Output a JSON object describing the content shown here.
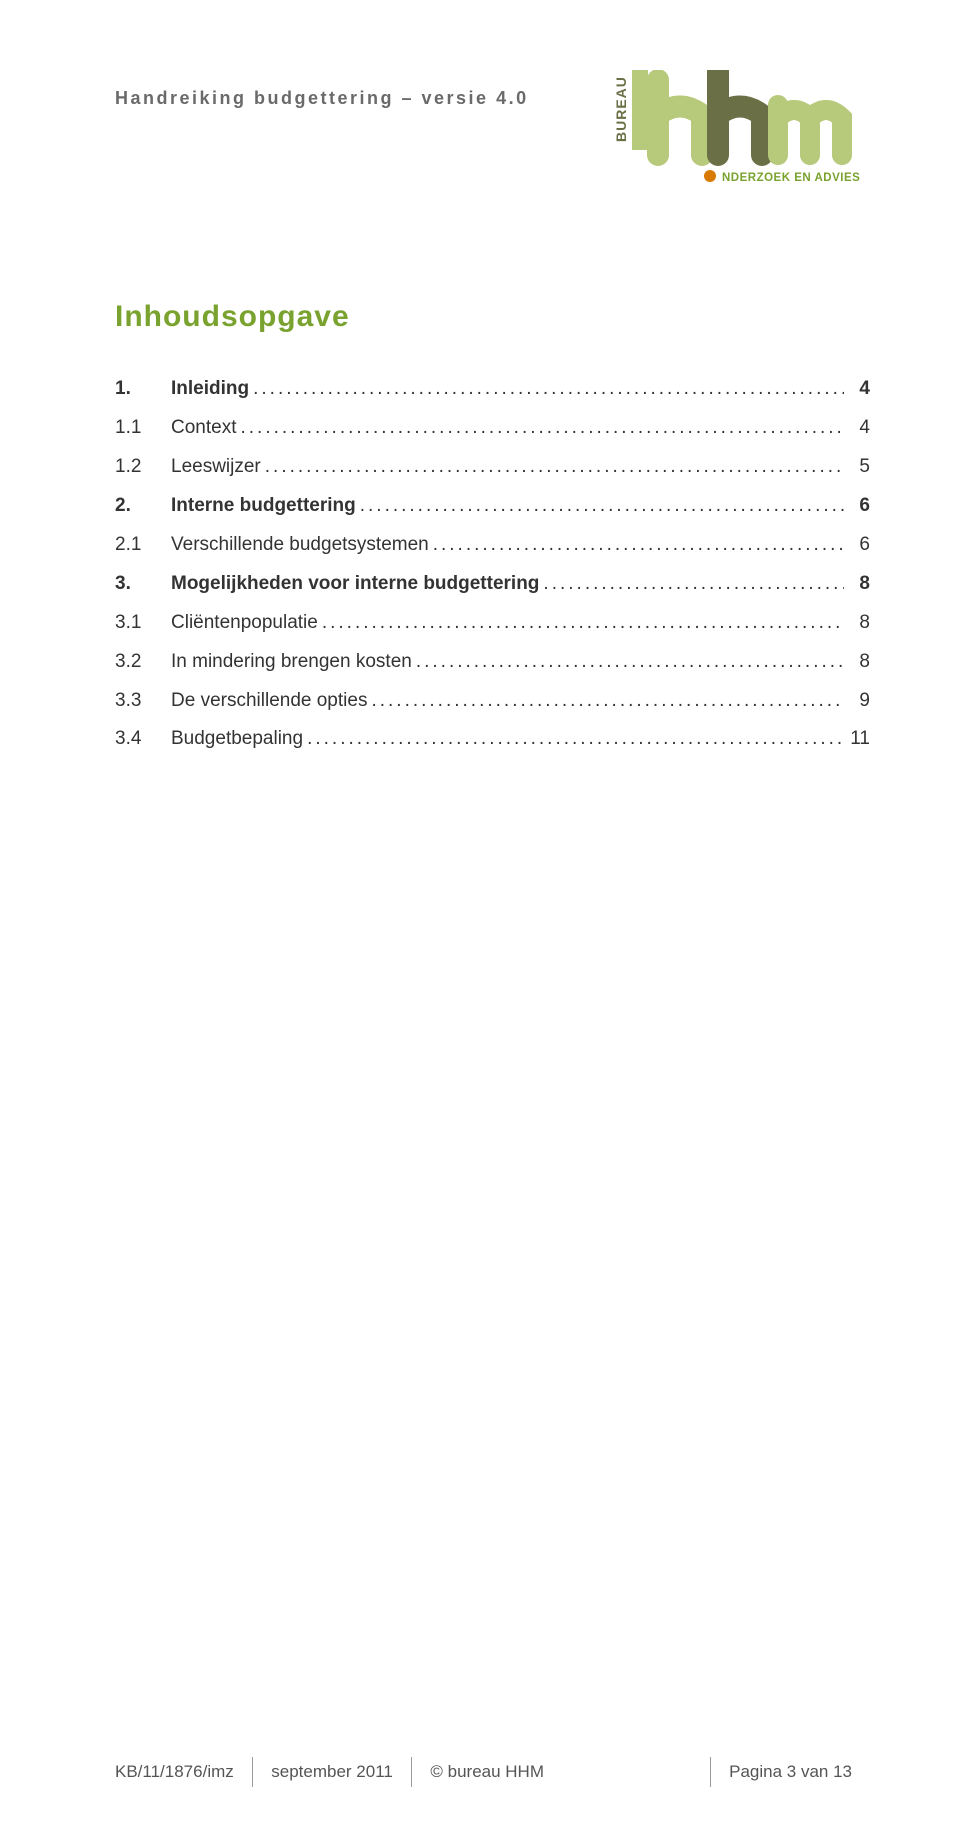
{
  "colors": {
    "toc_title": "#7aa22f",
    "logo_light": "#b7c97a",
    "logo_dark": "#6a6f45",
    "tagline_dot": "#d97a00",
    "tagline_text": "#7aa22f",
    "header_text": "#6a6a6a",
    "footer_sep": "#999999"
  },
  "header": {
    "title": "Handreiking budgettering – versie 4.0"
  },
  "logo": {
    "bureau_text": "BUREAU",
    "main_text": "hhm",
    "tagline": "NDERZOEK EN ADVIES"
  },
  "toc": {
    "title": "Inhoudsopgave",
    "items": [
      {
        "num": "1.",
        "label": "Inleiding",
        "page": "4",
        "bold": true
      },
      {
        "num": "1.1",
        "label": "Context",
        "page": "4",
        "bold": false
      },
      {
        "num": "1.2",
        "label": "Leeswijzer",
        "page": "5",
        "bold": false
      },
      {
        "num": "2.",
        "label": "Interne budgettering",
        "page": "6",
        "bold": true
      },
      {
        "num": "2.1",
        "label": "Verschillende budgetsystemen",
        "page": "6",
        "bold": false
      },
      {
        "num": "3.",
        "label": "Mogelijkheden voor interne budgettering",
        "page": "8",
        "bold": true
      },
      {
        "num": "3.1",
        "label": "Cliëntenpopulatie",
        "page": "8",
        "bold": false
      },
      {
        "num": "3.2",
        "label": "In mindering brengen kosten",
        "page": "8",
        "bold": false
      },
      {
        "num": "3.3",
        "label": "De verschillende opties",
        "page": "9",
        "bold": false
      },
      {
        "num": "3.4",
        "label": "Budgetbepaling",
        "page": "11",
        "bold": false
      }
    ]
  },
  "footer": {
    "ref": "KB/11/1876/imz",
    "date": "september 2011",
    "org": "© bureau HHM",
    "page": "Pagina 3 van 13"
  }
}
